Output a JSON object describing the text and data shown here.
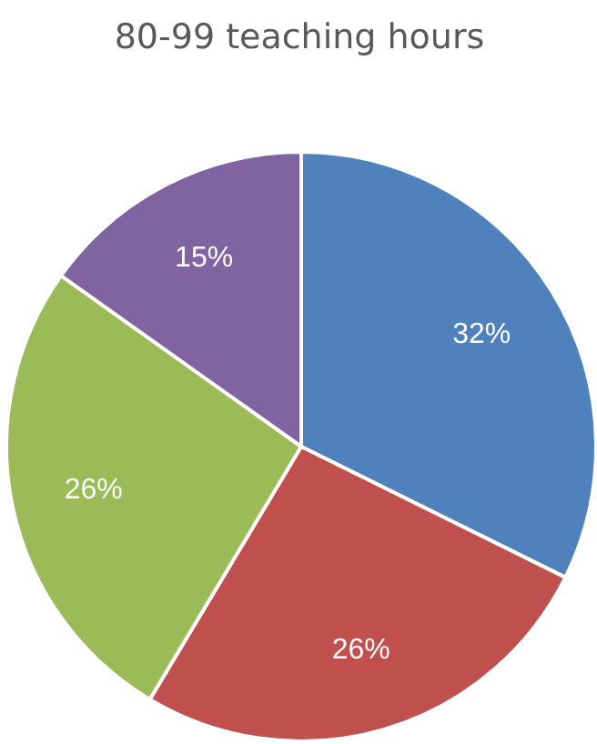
{
  "chart_data": {
    "type": "pie",
    "title": "80-99 teaching hours",
    "categories": [
      null,
      null,
      null,
      null
    ],
    "values": [
      32,
      26,
      26,
      15
    ],
    "colors": [
      "#4f81bd",
      "#c0504d",
      "#9bbb59",
      "#8064a2"
    ],
    "value_labels": [
      "32%",
      "26%",
      "26%",
      "15%"
    ]
  }
}
